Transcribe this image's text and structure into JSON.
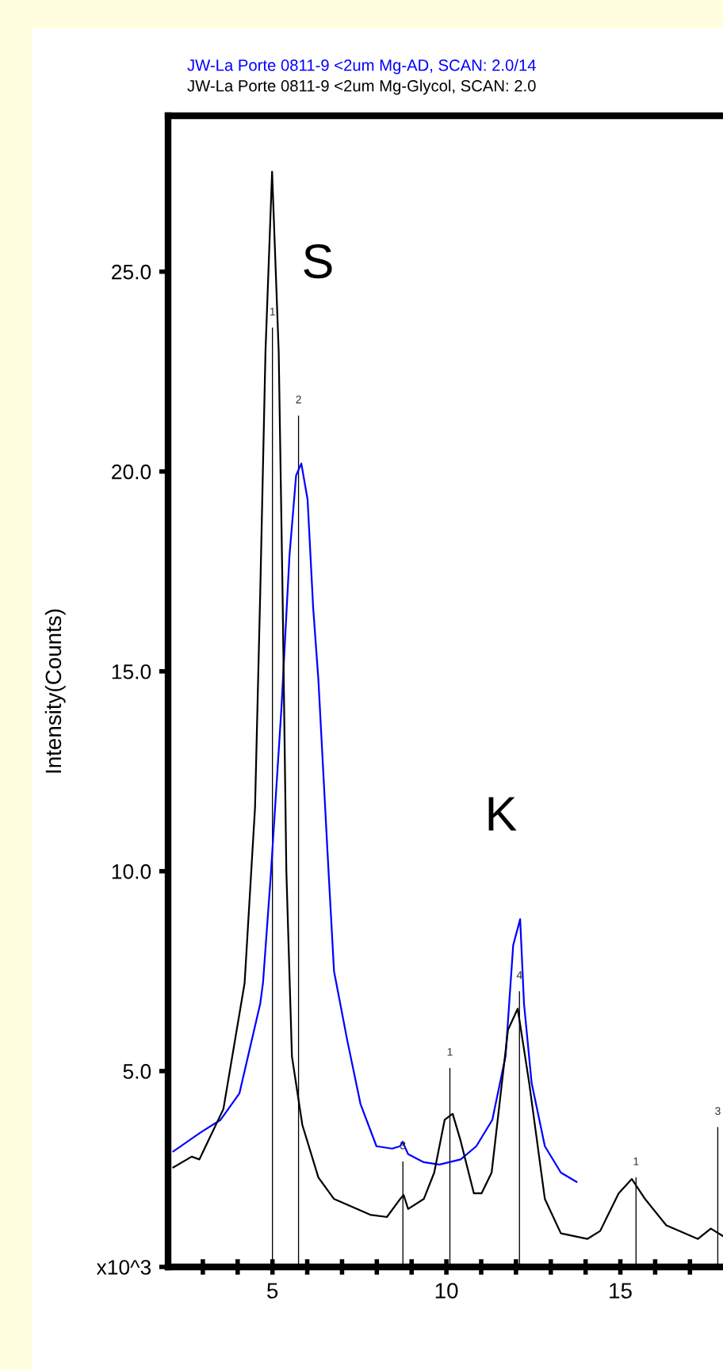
{
  "chart_data": {
    "type": "line",
    "ylabel": "Intensity(Counts)",
    "xlim": [
      2.0,
      17.95
    ],
    "ylim": [
      0.1,
      28.9
    ],
    "xticks": [
      {
        "value": 3,
        "label": null
      },
      {
        "value": 4,
        "label": null
      },
      5,
      {
        "value": 6,
        "label": null
      },
      {
        "value": 7,
        "label": null
      },
      {
        "value": 8,
        "label": null
      },
      {
        "value": 9,
        "label": null
      },
      10,
      {
        "value": 11,
        "label": null
      },
      {
        "value": 12,
        "label": null
      },
      {
        "value": 13,
        "label": null
      },
      {
        "value": 14,
        "label": null
      },
      15,
      {
        "value": 16,
        "label": null
      },
      {
        "value": 17,
        "label": null
      }
    ],
    "yticks": [
      {
        "value": 0.1,
        "label": "x10^3"
      },
      {
        "value": 5,
        "label": "5.0"
      },
      {
        "value": 10,
        "label": "10.0"
      },
      {
        "value": 15,
        "label": "15.0"
      },
      {
        "value": 20,
        "label": "20.0"
      },
      {
        "value": 25,
        "label": "25.0"
      }
    ],
    "legend": "top left",
    "marker": "none",
    "line_style": "solid",
    "annotations": [
      "S",
      "K",
      {
        "text": "1",
        "x": 5.0,
        "y": 23.6
      },
      {
        "text": "2",
        "x": 5.75,
        "y": 21.4
      },
      {
        "text": "3",
        "x": 8.75,
        "y": 2.74
      },
      {
        "text": "1",
        "x": 10.1,
        "y": 5.08
      },
      {
        "text": "4",
        "x": 12.1,
        "y": 7.0
      },
      {
        "text": "1",
        "x": 15.45,
        "y": 2.34
      },
      {
        "text": "3",
        "x": 17.8,
        "y": 3.6
      }
    ],
    "series": [
      {
        "name": "JW-La Porte 0811-9 <2um Mg-AD, SCAN: 2.0/14",
        "color": "#0000ff",
        "x": [
          2.15,
          2.91,
          3.51,
          4.05,
          4.65,
          4.73,
          4.95,
          5.26,
          5.49,
          5.68,
          5.83,
          6.01,
          6.17,
          6.32,
          6.62,
          6.77,
          7.15,
          7.53,
          7.99,
          8.44,
          8.67,
          8.74,
          8.9,
          9.35,
          9.8,
          10.41,
          10.86,
          11.32,
          11.7,
          11.92,
          12.12,
          12.23,
          12.45,
          12.83,
          13.29,
          13.74
        ],
        "values": [
          2.99,
          3.45,
          3.78,
          4.44,
          6.69,
          7.22,
          9.87,
          14.1,
          17.9,
          19.9,
          20.2,
          19.3,
          16.6,
          14.8,
          9.87,
          7.5,
          5.77,
          4.18,
          3.12,
          3.06,
          3.12,
          3.23,
          2.92,
          2.72,
          2.66,
          2.79,
          3.12,
          3.78,
          5.37,
          8.15,
          8.8,
          6.69,
          4.7,
          3.12,
          2.46,
          2.23
        ]
      },
      {
        "name": "JW-La Porte 0811-9 <2um Mg-Glycol, SCAN: 2.0",
        "color": "#000000",
        "x": [
          2.15,
          2.68,
          2.9,
          3.59,
          4.2,
          4.5,
          4.65,
          4.8,
          4.99,
          5.18,
          5.29,
          5.4,
          5.56,
          5.86,
          6.32,
          6.77,
          7.83,
          8.29,
          8.67,
          8.77,
          8.9,
          9.35,
          9.65,
          9.95,
          10.18,
          10.41,
          10.79,
          11.01,
          11.3,
          11.77,
          12.05,
          12.38,
          12.83,
          13.29,
          14.05,
          14.42,
          14.95,
          15.33,
          15.71,
          16.32,
          17.23,
          17.6,
          17.95
        ],
        "values": [
          2.59,
          2.86,
          2.79,
          4.05,
          7.2,
          11.6,
          17.0,
          23.0,
          27.5,
          23.0,
          17.0,
          10.0,
          5.37,
          3.65,
          2.34,
          1.8,
          1.4,
          1.35,
          1.8,
          1.9,
          1.55,
          1.8,
          2.46,
          3.78,
          3.93,
          3.25,
          1.94,
          1.94,
          2.46,
          6.03,
          6.56,
          4.7,
          1.8,
          0.94,
          0.8,
          1.0,
          1.94,
          2.3,
          1.8,
          1.14,
          0.8,
          1.06,
          0.87
        ]
      },
      {
        "type": "bar",
        "color": "#000000",
        "x": [
          5.0,
          5.75,
          8.75,
          10.1,
          12.1,
          15.45,
          17.8
        ],
        "values": [
          23.6,
          21.4,
          2.74,
          5.08,
          7.0,
          2.34,
          3.6
        ]
      }
    ]
  }
}
